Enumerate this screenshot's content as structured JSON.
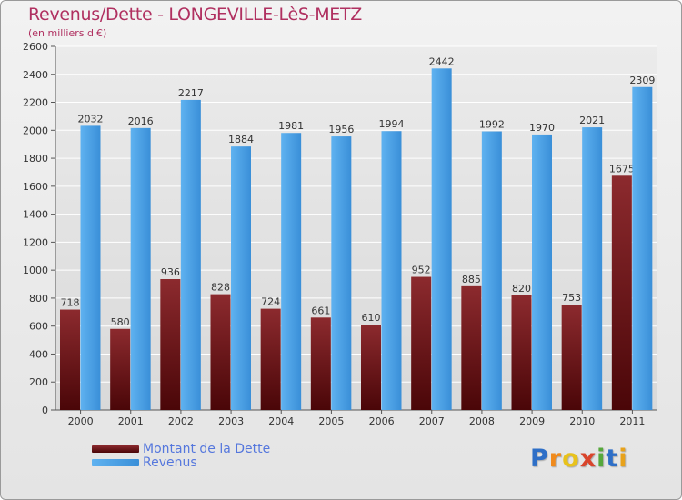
{
  "chart_data": {
    "type": "bar",
    "title": "Revenus/Dette - LONGEVILLE-LèS-METZ",
    "subtitle": "(en milliers d'€)",
    "categories": [
      "2000",
      "2001",
      "2002",
      "2003",
      "2004",
      "2005",
      "2006",
      "2007",
      "2008",
      "2009",
      "2010",
      "2011"
    ],
    "series": [
      {
        "name": "Montant de la Dette",
        "values": [
          718,
          580,
          936,
          828,
          724,
          661,
          610,
          952,
          885,
          820,
          753,
          1675
        ],
        "color": "#7a1e22"
      },
      {
        "name": "Revenus",
        "values": [
          2032,
          2016,
          2217,
          1884,
          1981,
          1956,
          1994,
          2442,
          1992,
          1970,
          2021,
          2309
        ],
        "color": "#4ea3e6"
      }
    ],
    "ylim": [
      0,
      2600
    ],
    "yticks": [
      0,
      200,
      400,
      600,
      800,
      1000,
      1200,
      1400,
      1600,
      1800,
      2000,
      2200,
      2400,
      2600
    ],
    "grid": true,
    "legend_position": "bottom-left"
  },
  "logo": {
    "text": "Proxiti",
    "letters": [
      "P",
      "r",
      "o",
      "x",
      "i",
      "t",
      "i"
    ],
    "colors": [
      "#2e6fc7",
      "#f08a1c",
      "#e8c21b",
      "#d9442b",
      "#56a83c",
      "#2e6fc7",
      "#e8a21b"
    ]
  }
}
